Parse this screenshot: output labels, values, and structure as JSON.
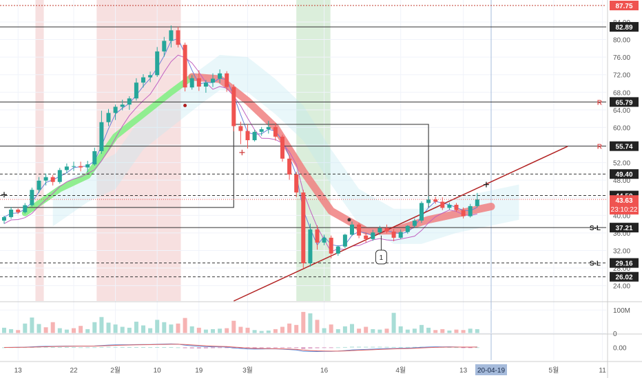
{
  "colors": {
    "up": "#26a69a",
    "down": "#ef5350",
    "grid": "#f0f3fa",
    "axis_text": "#555555",
    "level_line": "#333333",
    "trend_line": "#b22222",
    "ribbon_red": "#f08080",
    "ribbon_green": "#90ee90",
    "band_red": "#f4d6d6",
    "band_green": "#cfe8cf",
    "ichimoku": "#bfe9f2",
    "vol_up": "#a8ddd6",
    "vol_down": "#f6b3b3",
    "macd_line": "#5a8ad8",
    "signal_line": "#e06060",
    "hist": "#d080b0",
    "price_tag": "#ef5350",
    "date_tag": "#a6bbdb"
  },
  "chart_data": {
    "type": "candlestick",
    "price_axis": {
      "ylim": [
        20.5,
        89
      ],
      "ticks": [
        24,
        28,
        32,
        36,
        40,
        44,
        48,
        52,
        56,
        60,
        64,
        68,
        72,
        76,
        80,
        84
      ]
    },
    "x_axis": {
      "labels": [
        {
          "label": "13",
          "index": 2
        },
        {
          "label": "22",
          "index": 10
        },
        {
          "label": "2월",
          "index": 16
        },
        {
          "label": "10",
          "index": 22
        },
        {
          "label": "19",
          "index": 28
        },
        {
          "label": "3월",
          "index": 35
        },
        {
          "label": "16",
          "index": 46
        },
        {
          "label": "4월",
          "index": 57
        },
        {
          "label": "13",
          "index": 66
        },
        {
          "label": "5월",
          "index": 79
        },
        {
          "label": "11",
          "index": 86
        }
      ],
      "date_marker": "20-04-19",
      "date_marker_index": 70
    },
    "candles": [
      [
        38.8,
        39.9,
        38.1,
        39.6
      ],
      [
        39.6,
        41.9,
        39.2,
        41.3
      ],
      [
        41.3,
        41.6,
        40.3,
        40.7
      ],
      [
        40.7,
        42.8,
        40.4,
        42.3
      ],
      [
        42.3,
        46.3,
        42.0,
        45.8
      ],
      [
        45.8,
        48.7,
        45.1,
        47.9
      ],
      [
        47.9,
        49.5,
        46.8,
        48.7
      ],
      [
        48.7,
        49.2,
        46.8,
        47.6
      ],
      [
        47.6,
        50.8,
        47.2,
        50.3
      ],
      [
        50.3,
        51.8,
        49.6,
        51.1
      ],
      [
        51.1,
        52.2,
        50.1,
        51.2
      ],
      [
        51.2,
        52.2,
        50.0,
        50.9
      ],
      [
        50.9,
        52.4,
        49.8,
        51.6
      ],
      [
        51.6,
        55.4,
        51.3,
        54.6
      ],
      [
        54.6,
        63.8,
        54.0,
        61.2
      ],
      [
        61.2,
        64.2,
        60.3,
        63.3
      ],
      [
        63.3,
        65.2,
        61.7,
        64.7
      ],
      [
        64.7,
        66.3,
        63.9,
        65.2
      ],
      [
        65.2,
        67.1,
        64.0,
        66.6
      ],
      [
        66.6,
        71.2,
        66.1,
        70.2
      ],
      [
        70.2,
        72.1,
        69.1,
        71.4
      ],
      [
        71.4,
        72.7,
        70.3,
        71.9
      ],
      [
        71.9,
        78.3,
        71.5,
        77.3
      ],
      [
        77.3,
        80.6,
        76.1,
        79.7
      ],
      [
        79.7,
        83.2,
        78.2,
        82.1
      ],
      [
        82.1,
        82.9,
        78.2,
        78.8
      ],
      [
        78.8,
        79.3,
        68.2,
        69.1
      ],
      [
        69.1,
        71.9,
        68.6,
        71.2
      ],
      [
        71.2,
        73.0,
        68.3,
        69.3
      ],
      [
        69.3,
        70.8,
        67.9,
        70.2
      ],
      [
        70.2,
        72.3,
        69.2,
        71.1
      ],
      [
        71.1,
        73.2,
        70.1,
        72.3
      ],
      [
        72.3,
        72.8,
        68.1,
        69.2
      ],
      [
        69.2,
        69.8,
        59.1,
        60.3
      ],
      [
        60.3,
        61.3,
        56.2,
        59.2
      ],
      [
        59.2,
        60.8,
        55.2,
        57.1
      ],
      [
        57.1,
        59.5,
        56.8,
        59.0
      ],
      [
        59.0,
        60.1,
        58.1,
        59.6
      ],
      [
        59.6,
        61.5,
        58.6,
        60.1
      ],
      [
        60.1,
        61.0,
        57.0,
        57.9
      ],
      [
        57.9,
        58.3,
        52.2,
        52.9
      ],
      [
        52.9,
        53.6,
        48.1,
        49.3
      ],
      [
        49.3,
        49.9,
        44.1,
        45.2
      ],
      [
        45.2,
        45.8,
        28.0,
        29.1
      ],
      [
        29.1,
        38.1,
        28.3,
        36.8
      ],
      [
        36.8,
        37.7,
        32.2,
        33.8
      ],
      [
        33.8,
        35.6,
        33.2,
        34.9
      ],
      [
        34.9,
        35.4,
        30.2,
        31.3
      ],
      [
        31.3,
        33.2,
        30.8,
        32.9
      ],
      [
        32.9,
        35.8,
        32.5,
        35.6
      ],
      [
        35.6,
        38.6,
        35.3,
        37.9
      ],
      [
        37.9,
        38.3,
        34.8,
        35.4
      ],
      [
        35.4,
        36.1,
        33.8,
        34.6
      ],
      [
        34.6,
        36.7,
        34.2,
        36.1
      ],
      [
        36.1,
        37.6,
        35.6,
        37.1
      ],
      [
        37.1,
        37.9,
        35.9,
        36.3
      ],
      [
        36.3,
        36.9,
        34.1,
        34.9
      ],
      [
        34.9,
        36.8,
        34.6,
        36.2
      ],
      [
        36.2,
        37.8,
        35.8,
        37.6
      ],
      [
        37.6,
        39.3,
        37.1,
        38.8
      ],
      [
        38.8,
        43.2,
        38.3,
        42.8
      ],
      [
        42.8,
        44.3,
        42.1,
        43.6
      ],
      [
        43.6,
        44.2,
        42.6,
        43.1
      ],
      [
        43.1,
        44.1,
        41.2,
        41.7
      ],
      [
        41.7,
        42.9,
        41.3,
        42.4
      ],
      [
        42.4,
        42.8,
        40.8,
        41.2
      ],
      [
        41.2,
        41.8,
        39.3,
        39.8
      ],
      [
        39.8,
        42.6,
        39.5,
        42.1
      ],
      [
        42.1,
        45.1,
        41.8,
        43.63
      ]
    ],
    "volume": [
      {
        "v": 24,
        "up": true
      },
      {
        "v": 18,
        "up": true
      },
      {
        "v": 14,
        "up": false
      },
      {
        "v": 42,
        "up": true
      },
      {
        "v": 68,
        "up": true
      },
      {
        "v": 40,
        "up": true
      },
      {
        "v": 26,
        "up": false
      },
      {
        "v": 48,
        "up": false
      },
      {
        "v": 22,
        "up": true
      },
      {
        "v": 16,
        "up": true
      },
      {
        "v": 22,
        "up": false
      },
      {
        "v": 32,
        "up": false
      },
      {
        "v": 18,
        "up": true
      },
      {
        "v": 48,
        "up": true
      },
      {
        "v": 70,
        "up": true
      },
      {
        "v": 46,
        "up": true
      },
      {
        "v": 38,
        "up": true
      },
      {
        "v": 28,
        "up": true
      },
      {
        "v": 24,
        "up": true
      },
      {
        "v": 50,
        "up": true
      },
      {
        "v": 34,
        "up": true
      },
      {
        "v": 22,
        "up": true
      },
      {
        "v": 58,
        "up": true
      },
      {
        "v": 48,
        "up": true
      },
      {
        "v": 38,
        "up": true
      },
      {
        "v": 42,
        "up": false
      },
      {
        "v": 66,
        "up": false
      },
      {
        "v": 30,
        "up": true
      },
      {
        "v": 24,
        "up": false
      },
      {
        "v": 16,
        "up": true
      },
      {
        "v": 18,
        "up": true
      },
      {
        "v": 20,
        "up": true
      },
      {
        "v": 22,
        "up": false
      },
      {
        "v": 54,
        "up": false
      },
      {
        "v": 28,
        "up": false
      },
      {
        "v": 24,
        "up": false
      },
      {
        "v": 14,
        "up": true
      },
      {
        "v": 10,
        "up": true
      },
      {
        "v": 12,
        "up": true
      },
      {
        "v": 18,
        "up": false
      },
      {
        "v": 28,
        "up": false
      },
      {
        "v": 42,
        "up": false
      },
      {
        "v": 36,
        "up": false
      },
      {
        "v": 92,
        "up": false
      },
      {
        "v": 86,
        "up": true
      },
      {
        "v": 58,
        "up": false
      },
      {
        "v": 22,
        "up": true
      },
      {
        "v": 38,
        "up": false
      },
      {
        "v": 18,
        "up": true
      },
      {
        "v": 30,
        "up": true
      },
      {
        "v": 40,
        "up": true
      },
      {
        "v": 20,
        "up": false
      },
      {
        "v": 28,
        "up": false
      },
      {
        "v": 18,
        "up": true
      },
      {
        "v": 16,
        "up": true
      },
      {
        "v": 20,
        "up": false
      },
      {
        "v": 88,
        "up": true
      },
      {
        "v": 30,
        "up": true
      },
      {
        "v": 16,
        "up": true
      },
      {
        "v": 20,
        "up": true
      },
      {
        "v": 36,
        "up": true
      },
      {
        "v": 24,
        "up": true
      },
      {
        "v": 14,
        "up": false
      },
      {
        "v": 18,
        "up": false
      },
      {
        "v": 12,
        "up": true
      },
      {
        "v": 16,
        "up": false
      },
      {
        "v": 14,
        "up": false
      },
      {
        "v": 20,
        "up": true
      },
      {
        "v": 18,
        "up": true
      }
    ],
    "volume_axis": {
      "ylim": [
        0,
        130
      ],
      "ticks": [
        {
          "value": 100,
          "label": "100M"
        },
        {
          "value": 0,
          "label": "0"
        }
      ]
    },
    "macd_axis": {
      "ylim": [
        -1,
        1
      ],
      "ticks": [
        {
          "value": 0,
          "label": "0.00"
        }
      ]
    },
    "levels": [
      {
        "value": 87.75,
        "label": "87.75",
        "style": "dotted",
        "color": "#c0392b",
        "tag_bg": "#ef5350",
        "tag_fg": "#ffffff"
      },
      {
        "value": 82.89,
        "label": "82.89",
        "style": "solid",
        "color": "#333333",
        "tag_bg": "#222222",
        "tag_fg": "#ffffff"
      },
      {
        "value": 65.79,
        "label": "65.79",
        "style": "solid",
        "color": "#333333",
        "tag_bg": "#222222",
        "tag_fg": "#ffffff",
        "marker": "R"
      },
      {
        "value": 55.74,
        "label": "55.74",
        "style": "solid",
        "color": "#333333",
        "tag_bg": "#222222",
        "tag_fg": "#ffffff",
        "marker": "R"
      },
      {
        "value": 49.4,
        "label": "49.40",
        "style": "dashed",
        "color": "#333333",
        "tag_bg": "#222222",
        "tag_fg": "#ffffff"
      },
      {
        "value": 44.5,
        "label": "44.50",
        "style": "dashed",
        "color": "#333333",
        "tag_bg": "#222222",
        "tag_fg": "#ffffff"
      },
      {
        "value": 37.21,
        "label": "37.21",
        "style": "solid",
        "color": "#333333",
        "tag_bg": "#222222",
        "tag_fg": "#ffffff",
        "marker": "S-L"
      },
      {
        "value": 29.16,
        "label": "29.16",
        "style": "dashed",
        "color": "#333333",
        "tag_bg": "#222222",
        "tag_fg": "#ffffff",
        "marker": "S-L"
      },
      {
        "value": 26.02,
        "label": "26.02",
        "style": "dashed",
        "color": "#333333",
        "tag_bg": "#222222",
        "tag_fg": "#ffffff"
      }
    ],
    "current_price": {
      "label": "43.63",
      "value": 43.63,
      "countdown": "23:10:22"
    },
    "annotation_label": "1",
    "shaded_bands": [
      {
        "from": 4.5,
        "to": 5.7,
        "color": "red"
      },
      {
        "from": 13.3,
        "to": 25.4,
        "color": "red"
      },
      {
        "from": 42.0,
        "to": 46.9,
        "color": "green"
      }
    ],
    "trend_line": {
      "x1": 33,
      "y1": 20.5,
      "x2": 81,
      "y2": 55.7
    },
    "range_box": {
      "x1": 0,
      "y1": 41.8,
      "x2": 33,
      "y2": 60.7,
      "x3": 61,
      "y3": 41.8
    },
    "ribbon_points": [
      {
        "i": 3,
        "v": 40.5
      },
      {
        "i": 8,
        "v": 46
      },
      {
        "i": 12,
        "v": 49
      },
      {
        "i": 16,
        "v": 58
      },
      {
        "i": 20,
        "v": 63
      },
      {
        "i": 24,
        "v": 68
      },
      {
        "i": 27,
        "v": 71.5
      },
      {
        "i": 31,
        "v": 71
      },
      {
        "i": 35,
        "v": 66
      },
      {
        "i": 39,
        "v": 60
      },
      {
        "i": 43,
        "v": 50
      },
      {
        "i": 47,
        "v": 41
      },
      {
        "i": 52,
        "v": 36.5
      },
      {
        "i": 56,
        "v": 36.5
      },
      {
        "i": 61,
        "v": 39
      },
      {
        "i": 70,
        "v": 42
      }
    ]
  }
}
